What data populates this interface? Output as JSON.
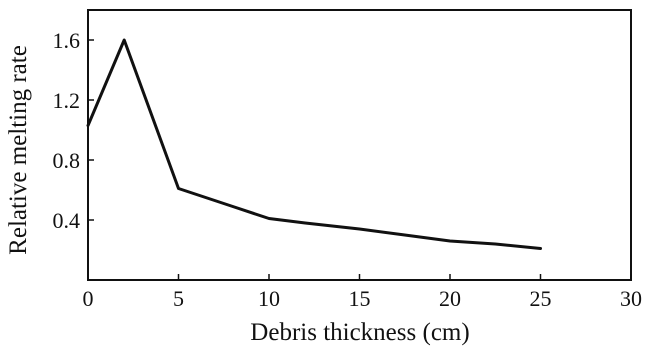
{
  "chart_data": {
    "type": "line",
    "title": "",
    "xlabel": "Debris thickness (cm)",
    "ylabel": "Relative melting rate",
    "xlim": [
      0,
      30
    ],
    "ylim": [
      0,
      1.8
    ],
    "xticks": [
      0,
      5,
      10,
      15,
      20,
      25,
      30
    ],
    "xtick_labels": [
      "0",
      "5",
      "10",
      "15",
      "20",
      "25",
      "30"
    ],
    "yticks": [
      0.4,
      0.8,
      1.2,
      1.6
    ],
    "ytick_labels": [
      "0.4",
      "0.8",
      "1.2",
      "1.6"
    ],
    "grid": false,
    "legend": "none",
    "line_color": "#111111",
    "series": [
      {
        "x": [
          0,
          2,
          5,
          6,
          8,
          10,
          12,
          15,
          17.5,
          20,
          22.5,
          25
        ],
        "y": [
          1.03,
          1.6,
          0.61,
          0.57,
          0.49,
          0.41,
          0.38,
          0.34,
          0.3,
          0.26,
          0.24,
          0.21
        ]
      }
    ]
  }
}
